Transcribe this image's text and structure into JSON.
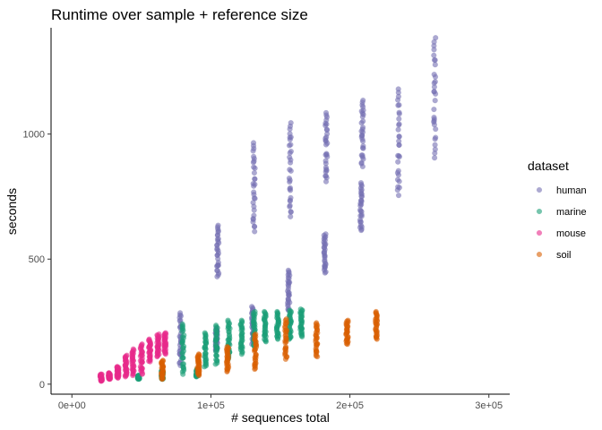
{
  "chart_data": {
    "type": "scatter",
    "title": "Runtime over sample + reference size",
    "xlabel": "# sequences total",
    "ylabel": "seconds",
    "xlim": [
      -15000,
      315000
    ],
    "ylim": [
      -40,
      1425
    ],
    "x_ticks": [
      0,
      100000,
      200000,
      300000
    ],
    "x_tick_labels": [
      "0e+00",
      "1e+05",
      "2e+05",
      "3e+05"
    ],
    "y_ticks": [
      0,
      500,
      1000
    ],
    "y_tick_labels": [
      "0",
      "500",
      "1000"
    ],
    "grid": false,
    "legend": {
      "title": "dataset",
      "position": "right"
    },
    "series": [
      {
        "name": "human",
        "color": "#7570b3",
        "opacity": 0.6,
        "groups": [
          {
            "x": 78000,
            "ymin": 75,
            "ymax": 285
          },
          {
            "x": 104000,
            "ymin": 135,
            "ymax": 225
          },
          {
            "x": 105000,
            "ymin": 430,
            "ymax": 635
          },
          {
            "x": 130000,
            "ymin": 160,
            "ymax": 310
          },
          {
            "x": 131000,
            "ymin": 610,
            "ymax": 965
          },
          {
            "x": 156000,
            "ymin": 295,
            "ymax": 455
          },
          {
            "x": 157000,
            "ymin": 670,
            "ymax": 1045
          },
          {
            "x": 182000,
            "ymin": 445,
            "ymax": 600
          },
          {
            "x": 183000,
            "ymin": 810,
            "ymax": 1085
          },
          {
            "x": 208000,
            "ymin": 615,
            "ymax": 805
          },
          {
            "x": 209000,
            "ymin": 870,
            "ymax": 1135
          },
          {
            "x": 235000,
            "ymin": 755,
            "ymax": 1180
          },
          {
            "x": 261000,
            "ymin": 905,
            "ymax": 1385
          }
        ]
      },
      {
        "name": "marine",
        "color": "#1b9e77",
        "opacity": 0.6,
        "groups": [
          {
            "x": 48000,
            "ymin": 20,
            "ymax": 35
          },
          {
            "x": 65000,
            "ymin": 20,
            "ymax": 55
          },
          {
            "x": 80000,
            "ymin": 40,
            "ymax": 240
          },
          {
            "x": 90000,
            "ymin": 30,
            "ymax": 60
          },
          {
            "x": 96000,
            "ymin": 70,
            "ymax": 205
          },
          {
            "x": 104000,
            "ymin": 80,
            "ymax": 235
          },
          {
            "x": 113000,
            "ymin": 100,
            "ymax": 255
          },
          {
            "x": 122000,
            "ymin": 120,
            "ymax": 255
          },
          {
            "x": 131000,
            "ymin": 150,
            "ymax": 290
          },
          {
            "x": 139000,
            "ymin": 170,
            "ymax": 290
          },
          {
            "x": 148000,
            "ymin": 180,
            "ymax": 290
          },
          {
            "x": 157000,
            "ymin": 180,
            "ymax": 295
          },
          {
            "x": 165000,
            "ymin": 190,
            "ymax": 300
          }
        ]
      },
      {
        "name": "mouse",
        "color": "#e7298a",
        "opacity": 0.6,
        "groups": [
          {
            "x": 21000,
            "ymin": 12,
            "ymax": 40
          },
          {
            "x": 27000,
            "ymin": 20,
            "ymax": 45
          },
          {
            "x": 33000,
            "ymin": 25,
            "ymax": 70
          },
          {
            "x": 39000,
            "ymin": 30,
            "ymax": 115
          },
          {
            "x": 44000,
            "ymin": 35,
            "ymax": 140
          },
          {
            "x": 50000,
            "ymin": 40,
            "ymax": 160
          },
          {
            "x": 56000,
            "ymin": 90,
            "ymax": 180
          },
          {
            "x": 62000,
            "ymin": 110,
            "ymax": 200
          },
          {
            "x": 67000,
            "ymin": 120,
            "ymax": 205
          }
        ]
      },
      {
        "name": "soil",
        "color": "#d95f02",
        "opacity": 0.6,
        "groups": [
          {
            "x": 65000,
            "ymin": 20,
            "ymax": 95
          },
          {
            "x": 91000,
            "ymin": 35,
            "ymax": 120
          },
          {
            "x": 112000,
            "ymin": 50,
            "ymax": 150
          },
          {
            "x": 132000,
            "ymin": 60,
            "ymax": 200
          },
          {
            "x": 154000,
            "ymin": 100,
            "ymax": 260
          },
          {
            "x": 176000,
            "ymin": 110,
            "ymax": 245
          },
          {
            "x": 198000,
            "ymin": 160,
            "ymax": 255
          },
          {
            "x": 219000,
            "ymin": 180,
            "ymax": 290
          }
        ]
      }
    ]
  }
}
